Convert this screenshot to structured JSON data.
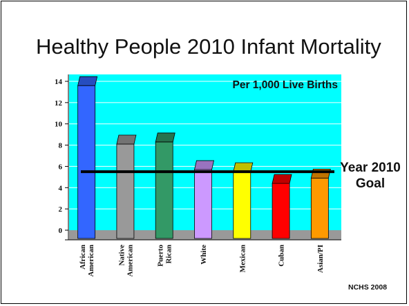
{
  "slide": {
    "title": "Healthy People 2010 Infant Mortality",
    "goal_label_line1": "Year 2010",
    "goal_label_line2": "Goal",
    "source": "NCHS 2008"
  },
  "chart_data": {
    "type": "bar",
    "annotation": "Per 1,000 Live Births",
    "categories": [
      [
        "African",
        "American"
      ],
      [
        "Native",
        "American"
      ],
      [
        "Puerto",
        "Rican"
      ],
      [
        "White"
      ],
      [
        "Mexican"
      ],
      [
        "Cuban"
      ],
      [
        "Asian/PI"
      ]
    ],
    "values": [
      13.6,
      8.1,
      8.3,
      5.7,
      5.5,
      4.4,
      4.9
    ],
    "bar_colors": [
      "#3366ff",
      "#999999",
      "#339966",
      "#cc99ff",
      "#ffff00",
      "#ff0000",
      "#ff9900"
    ],
    "goal_value": 5.5,
    "ylim": [
      0,
      14
    ],
    "yticks": [
      0,
      2,
      4,
      6,
      8,
      10,
      12,
      14
    ],
    "grid": true,
    "plot_background": "#00ffff",
    "floor_color": "#999999"
  }
}
